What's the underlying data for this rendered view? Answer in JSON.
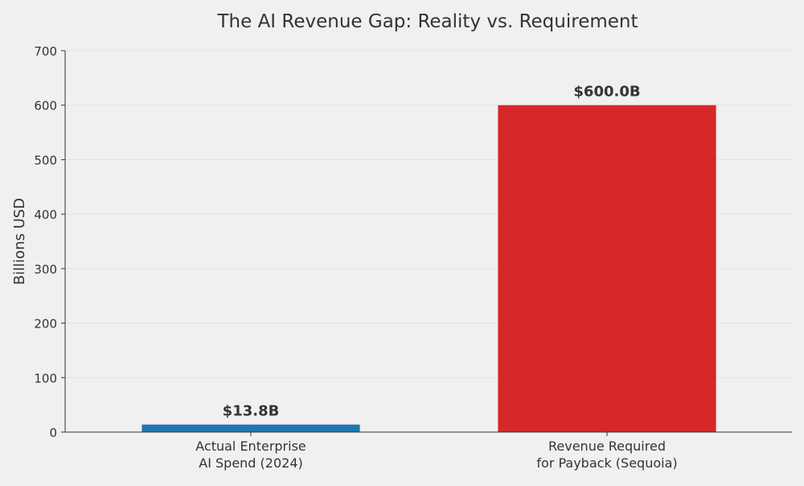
{
  "chart_data": {
    "type": "bar",
    "title": "The AI Revenue Gap: Reality vs. Requirement",
    "xlabel": "",
    "ylabel": "Billions USD",
    "ylim": [
      0,
      700
    ],
    "yticks": [
      0,
      100,
      200,
      300,
      400,
      500,
      600,
      700
    ],
    "grid": true,
    "categories": [
      [
        "Actual Enterprise",
        "AI Spend (2024)"
      ],
      [
        "Revenue Required",
        "for Payback (Sequoia)"
      ]
    ],
    "values": [
      13.8,
      600.0
    ],
    "value_labels": [
      "$13.8B",
      "$600.0B"
    ],
    "colors": [
      "#1f77b4",
      "#d62728"
    ]
  }
}
